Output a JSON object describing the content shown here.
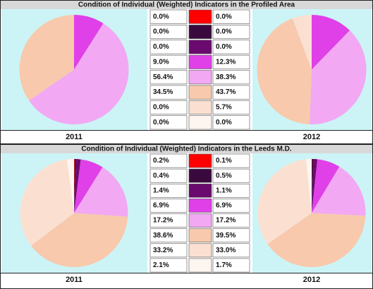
{
  "chart_data": [
    {
      "type": "pie",
      "title": "Condition of Individual (Weighted) Indicators in the Profiled Area",
      "colors": [
        "#ff0000",
        "#3a0a3e",
        "#6a0a6e",
        "#e040e8",
        "#f2a8f2",
        "#f8c9ac",
        "#fbe0d2",
        "#fdf5f0"
      ],
      "series": [
        {
          "name": "2011",
          "values": [
            0,
            0,
            0,
            9.0,
            56.4,
            34.5,
            0,
            0
          ],
          "value_labels": [
            "0.0%",
            "0.0%",
            "0.0%",
            "9.0%",
            "56.4%",
            "34.5%",
            "0.0%",
            "0.0%"
          ]
        },
        {
          "name": "2012",
          "values": [
            0,
            0,
            0,
            12.3,
            38.3,
            43.7,
            5.7,
            0
          ],
          "value_labels": [
            "0.0%",
            "0.0%",
            "0.0%",
            "12.3%",
            "38.3%",
            "43.7%",
            "5.7%",
            "0.0%"
          ]
        }
      ]
    },
    {
      "type": "pie",
      "title": "Condition of Individual (Weighted) Indicators in the Leeds M.D.",
      "colors": [
        "#ff0000",
        "#3a0a3e",
        "#6a0a6e",
        "#e040e8",
        "#f2a8f2",
        "#f8c9ac",
        "#fbe0d2",
        "#fdf5f0"
      ],
      "series": [
        {
          "name": "2011",
          "values": [
            0.2,
            0.4,
            1.4,
            6.9,
            17.2,
            38.6,
            33.2,
            2.1
          ],
          "value_labels": [
            "0.2%",
            "0.4%",
            "1.4%",
            "6.9%",
            "17.2%",
            "38.6%",
            "33.2%",
            "2.1%"
          ]
        },
        {
          "name": "2012",
          "values": [
            0.1,
            0.5,
            1.1,
            6.9,
            17.2,
            39.5,
            33.0,
            1.7
          ],
          "value_labels": [
            "0.1%",
            "0.5%",
            "1.1%",
            "6.9%",
            "17.2%",
            "39.5%",
            "33.0%",
            "1.7%"
          ]
        }
      ]
    }
  ]
}
